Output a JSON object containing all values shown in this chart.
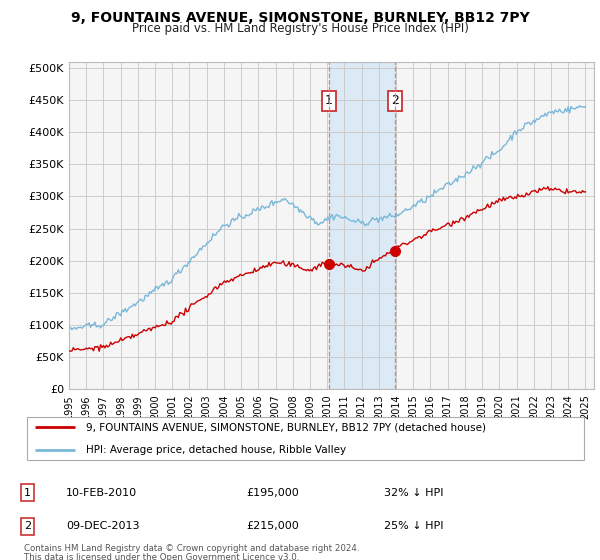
{
  "title": "9, FOUNTAINS AVENUE, SIMONSTONE, BURNLEY, BB12 7PY",
  "subtitle": "Price paid vs. HM Land Registry's House Price Index (HPI)",
  "ylabel_ticks": [
    "£0",
    "£50K",
    "£100K",
    "£150K",
    "£200K",
    "£250K",
    "£300K",
    "£350K",
    "£400K",
    "£450K",
    "£500K"
  ],
  "ylim": [
    0,
    510000
  ],
  "xlim_start": 1995.0,
  "xlim_end": 2025.5,
  "sale1_x": 2010.11,
  "sale1_y": 195000,
  "sale2_x": 2013.92,
  "sale2_y": 215000,
  "hpi_color": "#7ab8d9",
  "price_color": "#cc0000",
  "sale_dot_color": "#cc0000",
  "shading_color": "#d6e8f5",
  "dashed_line_color": "#cc8888",
  "legend_label_price": "9, FOUNTAINS AVENUE, SIMONSTONE, BURNLEY, BB12 7PY (detached house)",
  "legend_label_hpi": "HPI: Average price, detached house, Ribble Valley",
  "footnote1": "Contains HM Land Registry data © Crown copyright and database right 2024.",
  "footnote2": "This data is licensed under the Open Government Licence v3.0.",
  "background_color": "#ffffff",
  "grid_color": "#cccccc",
  "plot_bg_color": "#f5f5f5"
}
